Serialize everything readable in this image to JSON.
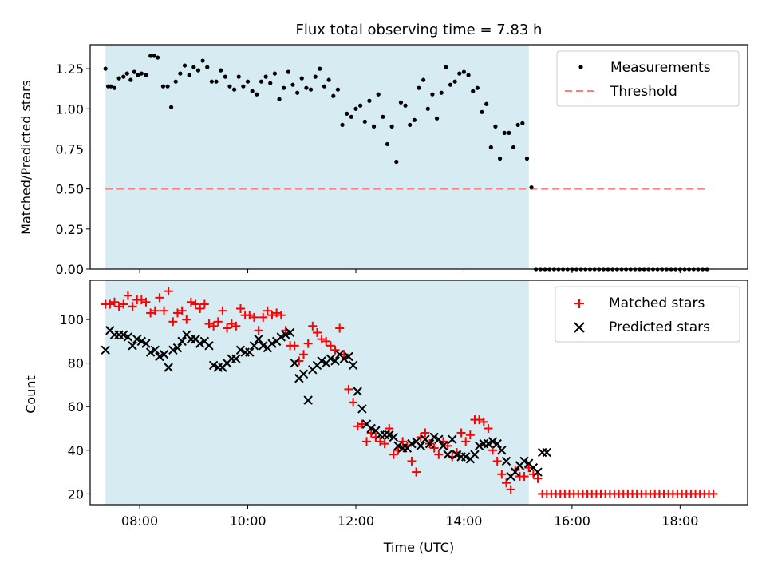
{
  "title": "Flux total observing time = 7.83 h",
  "chart_data": [
    {
      "type": "scatter",
      "panel": "top",
      "ylabel": "Matched/Predicted stars",
      "ylim": [
        0,
        1.4
      ],
      "xlim": [
        "07:05",
        "19:15"
      ],
      "yticks": [
        0.0,
        0.25,
        0.5,
        0.75,
        1.0,
        1.25
      ],
      "ytick_labels": [
        "0.00",
        "0.25",
        "0.50",
        "0.75",
        "1.00",
        "1.25"
      ],
      "shaded_span": [
        "07:22",
        "15:12"
      ],
      "shaded_color": "#add8e6",
      "threshold": {
        "name": "Threshold",
        "y": 0.5,
        "x": [
          "07:22",
          "18:30"
        ],
        "color": "#ff7f7f",
        "style": "dashed"
      },
      "series": [
        {
          "name": "Measurements",
          "marker": "dot",
          "color": "#000000",
          "points": [
            [
              "07:22",
              1.25
            ],
            [
              "07:25",
              1.14
            ],
            [
              "07:28",
              1.14
            ],
            [
              "07:32",
              1.13
            ],
            [
              "07:37",
              1.19
            ],
            [
              "07:42",
              1.2
            ],
            [
              "07:46",
              1.22
            ],
            [
              "07:50",
              1.18
            ],
            [
              "07:54",
              1.23
            ],
            [
              "07:58",
              1.21
            ],
            [
              "08:02",
              1.22
            ],
            [
              "08:07",
              1.21
            ],
            [
              "08:12",
              1.33
            ],
            [
              "08:16",
              1.33
            ],
            [
              "08:20",
              1.32
            ],
            [
              "08:26",
              1.14
            ],
            [
              "08:31",
              1.14
            ],
            [
              "08:35",
              1.01
            ],
            [
              "08:40",
              1.17
            ],
            [
              "08:45",
              1.22
            ],
            [
              "08:50",
              1.27
            ],
            [
              "08:55",
              1.21
            ],
            [
              "09:00",
              1.26
            ],
            [
              "09:05",
              1.24
            ],
            [
              "09:10",
              1.3
            ],
            [
              "09:15",
              1.26
            ],
            [
              "09:20",
              1.17
            ],
            [
              "09:25",
              1.17
            ],
            [
              "09:30",
              1.24
            ],
            [
              "09:35",
              1.2
            ],
            [
              "09:40",
              1.14
            ],
            [
              "09:45",
              1.12
            ],
            [
              "09:50",
              1.2
            ],
            [
              "09:55",
              1.14
            ],
            [
              "10:00",
              1.17
            ],
            [
              "10:05",
              1.11
            ],
            [
              "10:10",
              1.09
            ],
            [
              "10:15",
              1.17
            ],
            [
              "10:20",
              1.2
            ],
            [
              "10:25",
              1.16
            ],
            [
              "10:30",
              1.22
            ],
            [
              "10:35",
              1.06
            ],
            [
              "10:40",
              1.13
            ],
            [
              "10:45",
              1.23
            ],
            [
              "10:50",
              1.15
            ],
            [
              "10:55",
              1.1
            ],
            [
              "11:00",
              1.19
            ],
            [
              "11:05",
              1.13
            ],
            [
              "11:10",
              1.12
            ],
            [
              "11:15",
              1.2
            ],
            [
              "11:20",
              1.25
            ],
            [
              "11:25",
              1.14
            ],
            [
              "11:30",
              1.18
            ],
            [
              "11:35",
              1.08
            ],
            [
              "11:40",
              1.12
            ],
            [
              "11:45",
              0.9
            ],
            [
              "11:50",
              0.97
            ],
            [
              "11:55",
              0.95
            ],
            [
              "12:00",
              1.0
            ],
            [
              "12:05",
              1.02
            ],
            [
              "12:10",
              0.92
            ],
            [
              "12:15",
              1.05
            ],
            [
              "12:20",
              0.89
            ],
            [
              "12:25",
              1.09
            ],
            [
              "12:30",
              0.95
            ],
            [
              "12:35",
              0.78
            ],
            [
              "12:40",
              0.89
            ],
            [
              "12:45",
              0.67
            ],
            [
              "12:50",
              1.04
            ],
            [
              "12:55",
              1.02
            ],
            [
              "13:00",
              0.9
            ],
            [
              "13:05",
              0.93
            ],
            [
              "13:10",
              1.13
            ],
            [
              "13:15",
              1.18
            ],
            [
              "13:20",
              1.0
            ],
            [
              "13:25",
              1.09
            ],
            [
              "13:30",
              0.94
            ],
            [
              "13:35",
              1.1
            ],
            [
              "13:40",
              1.26
            ],
            [
              "13:45",
              1.15
            ],
            [
              "13:50",
              1.17
            ],
            [
              "13:55",
              1.22
            ],
            [
              "14:00",
              1.23
            ],
            [
              "14:05",
              1.21
            ],
            [
              "14:10",
              1.11
            ],
            [
              "14:15",
              1.13
            ],
            [
              "14:20",
              0.98
            ],
            [
              "14:25",
              1.03
            ],
            [
              "14:30",
              0.76
            ],
            [
              "14:35",
              0.89
            ],
            [
              "14:40",
              0.69
            ],
            [
              "14:45",
              0.85
            ],
            [
              "14:50",
              0.85
            ],
            [
              "14:55",
              0.76
            ],
            [
              "15:00",
              0.9
            ],
            [
              "15:05",
              0.91
            ],
            [
              "15:10",
              0.69
            ],
            [
              "15:15",
              0.51
            ],
            [
              "15:20",
              0.0
            ],
            [
              "15:25",
              0.0
            ],
            [
              "15:30",
              0.0
            ],
            [
              "15:35",
              0.0
            ],
            [
              "15:40",
              0.0
            ],
            [
              "15:45",
              0.0
            ],
            [
              "15:50",
              0.0
            ],
            [
              "15:55",
              0.0
            ],
            [
              "16:00",
              0.0
            ],
            [
              "16:05",
              0.0
            ],
            [
              "16:10",
              0.0
            ],
            [
              "16:15",
              0.0
            ],
            [
              "16:20",
              0.0
            ],
            [
              "16:25",
              0.0
            ],
            [
              "16:30",
              0.0
            ],
            [
              "16:35",
              0.0
            ],
            [
              "16:40",
              0.0
            ],
            [
              "16:45",
              0.0
            ],
            [
              "16:50",
              0.0
            ],
            [
              "16:55",
              0.0
            ],
            [
              "17:00",
              0.0
            ],
            [
              "17:05",
              0.0
            ],
            [
              "17:10",
              0.0
            ],
            [
              "17:15",
              0.0
            ],
            [
              "17:20",
              0.0
            ],
            [
              "17:25",
              0.0
            ],
            [
              "17:30",
              0.0
            ],
            [
              "17:35",
              0.0
            ],
            [
              "17:40",
              0.0
            ],
            [
              "17:45",
              0.0
            ],
            [
              "17:50",
              0.0
            ],
            [
              "17:55",
              0.0
            ],
            [
              "18:00",
              0.0
            ],
            [
              "18:05",
              0.0
            ],
            [
              "18:10",
              0.0
            ],
            [
              "18:15",
              0.0
            ],
            [
              "18:20",
              0.0
            ],
            [
              "18:25",
              0.0
            ],
            [
              "18:30",
              0.0
            ]
          ]
        }
      ],
      "legend": [
        "Measurements",
        "Threshold"
      ],
      "legend_loc": "upper right"
    },
    {
      "type": "scatter",
      "panel": "bottom",
      "ylabel": "Count",
      "xlabel": "Time (UTC)",
      "ylim": [
        15,
        118
      ],
      "xlim": [
        "07:05",
        "19:15"
      ],
      "yticks": [
        20,
        40,
        60,
        80,
        100
      ],
      "ytick_labels": [
        "20",
        "40",
        "60",
        "80",
        "100"
      ],
      "xtick_labels": [
        "08:00",
        "10:00",
        "12:00",
        "14:00",
        "16:00",
        "18:00"
      ],
      "shaded_span": [
        "07:22",
        "15:12"
      ],
      "shaded_color": "#add8e6",
      "series": [
        {
          "name": "Matched stars",
          "marker": "plus",
          "color": "#ff0000",
          "values": [
            107,
            107,
            108,
            106,
            107,
            111,
            106,
            109,
            109,
            108,
            103,
            104,
            110,
            104,
            113,
            99,
            103,
            104,
            100,
            108,
            107,
            105,
            107,
            98,
            97,
            99,
            104,
            96,
            98,
            97,
            105,
            102,
            102,
            101,
            95,
            101,
            104,
            102,
            103,
            102,
            95,
            88,
            88,
            81,
            84,
            89,
            97,
            94,
            91,
            90,
            88,
            86,
            96,
            84,
            68,
            62,
            51,
            52,
            44,
            48,
            46,
            44,
            43,
            50,
            38,
            40,
            44,
            42,
            35,
            30,
            46,
            48,
            43,
            41,
            38,
            44,
            42,
            37,
            39,
            48,
            44,
            47,
            54,
            54,
            53,
            50,
            40,
            35,
            29,
            25,
            22,
            31,
            28,
            28,
            32,
            29,
            27,
            20,
            20,
            20,
            20,
            20,
            20,
            20,
            20,
            20,
            20,
            20,
            20,
            20,
            20,
            20,
            20,
            20,
            20,
            20,
            20,
            20,
            20,
            20,
            20,
            20,
            20,
            20,
            20,
            20,
            20,
            20,
            20,
            20,
            20,
            20,
            20,
            20,
            20,
            20
          ]
        },
        {
          "name": "Predicted stars",
          "marker": "x",
          "color": "#000000",
          "values": [
            86,
            95,
            93,
            93,
            93,
            92,
            88,
            91,
            90,
            89,
            85,
            86,
            83,
            84,
            78,
            86,
            87,
            90,
            93,
            91,
            91,
            89,
            90,
            88,
            79,
            78,
            78,
            80,
            82,
            82,
            86,
            85,
            85,
            88,
            91,
            88,
            87,
            89,
            90,
            92,
            93,
            94,
            80,
            73,
            75,
            63,
            77,
            79,
            81,
            80,
            82,
            81,
            84,
            82,
            83,
            79,
            67,
            59,
            52,
            50,
            49,
            47,
            47,
            47,
            46,
            42,
            41,
            41,
            43,
            44,
            42,
            45,
            43,
            46,
            45,
            42,
            38,
            45,
            38,
            37,
            37,
            36,
            38,
            42,
            43,
            43,
            44,
            43,
            40,
            35,
            28,
            30,
            33,
            35,
            34,
            32,
            30,
            39,
            39
          ]
        }
      ],
      "legend": [
        "Matched stars",
        "Predicted stars"
      ],
      "legend_loc": "upper right"
    }
  ]
}
